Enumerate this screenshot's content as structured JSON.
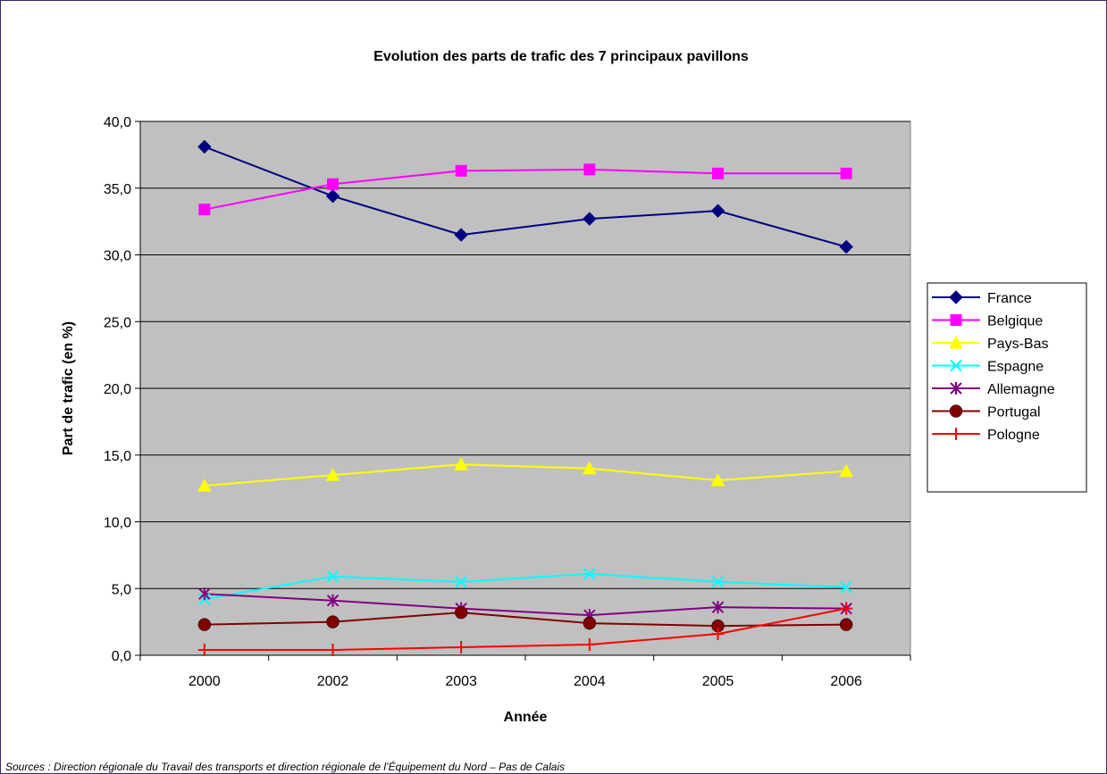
{
  "chart_data": {
    "type": "line",
    "title": "Evolution des parts de trafic des 7 principaux pavillons",
    "xlabel": "Année",
    "ylabel": "Part de trafic (en %)",
    "categories": [
      "2000",
      "2002",
      "2003",
      "2004",
      "2005",
      "2006"
    ],
    "ylim": [
      0,
      40
    ],
    "yticks": [
      "0,0",
      "5,0",
      "10,0",
      "15,0",
      "20,0",
      "25,0",
      "30,0",
      "35,0",
      "40,0"
    ],
    "grid": true,
    "legend_position": "right",
    "plot_background": "#c0c0c0",
    "series": [
      {
        "name": "France",
        "color": "#000080",
        "marker": "diamond",
        "values": [
          38.1,
          34.4,
          31.5,
          32.7,
          33.3,
          30.6
        ]
      },
      {
        "name": "Belgique",
        "color": "#ff00ff",
        "marker": "square",
        "values": [
          33.4,
          35.3,
          36.3,
          36.4,
          36.1,
          36.1
        ]
      },
      {
        "name": "Pays-Bas",
        "color": "#ffff00",
        "marker": "triangle",
        "values": [
          12.7,
          13.5,
          14.3,
          14.0,
          13.1,
          13.8
        ]
      },
      {
        "name": "Espagne",
        "color": "#00ffff",
        "marker": "x",
        "values": [
          4.2,
          5.9,
          5.5,
          6.1,
          5.5,
          5.1
        ]
      },
      {
        "name": "Allemagne",
        "color": "#800080",
        "marker": "asterisk",
        "values": [
          4.6,
          4.1,
          3.5,
          3.0,
          3.6,
          3.5
        ]
      },
      {
        "name": "Portugal",
        "color": "#800000",
        "marker": "circle",
        "values": [
          2.3,
          2.5,
          3.2,
          2.4,
          2.2,
          2.3
        ]
      },
      {
        "name": "Pologne",
        "color": "#ff0000",
        "marker": "plus",
        "values": [
          0.4,
          0.4,
          0.6,
          0.8,
          1.6,
          3.5
        ]
      }
    ]
  },
  "source": "Sources : Direction régionale du Travail des transports et direction régionale de l’Équipement du  Nord – Pas de Calais"
}
